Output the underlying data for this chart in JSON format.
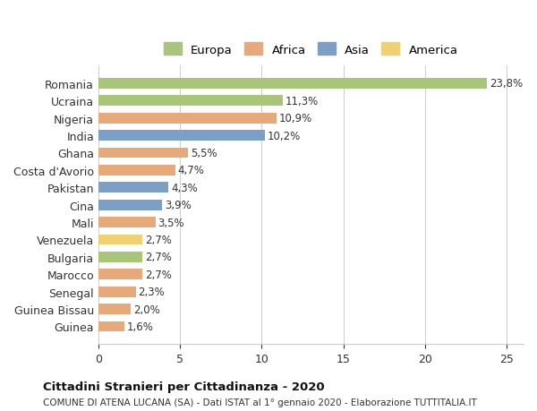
{
  "countries": [
    "Romania",
    "Ucraina",
    "Nigeria",
    "India",
    "Ghana",
    "Costa d'Avorio",
    "Pakistan",
    "Cina",
    "Mali",
    "Venezuela",
    "Bulgaria",
    "Marocco",
    "Senegal",
    "Guinea Bissau",
    "Guinea"
  ],
  "values": [
    23.8,
    11.3,
    10.9,
    10.2,
    5.5,
    4.7,
    4.3,
    3.9,
    3.5,
    2.7,
    2.7,
    2.7,
    2.3,
    2.0,
    1.6
  ],
  "labels": [
    "23,8%",
    "11,3%",
    "10,9%",
    "10,2%",
    "5,5%",
    "4,7%",
    "4,3%",
    "3,9%",
    "3,5%",
    "2,7%",
    "2,7%",
    "2,7%",
    "2,3%",
    "2,0%",
    "1,6%"
  ],
  "continents": [
    "Europa",
    "Europa",
    "Africa",
    "Asia",
    "Africa",
    "Africa",
    "Asia",
    "Asia",
    "Africa",
    "America",
    "Europa",
    "Africa",
    "Africa",
    "Africa",
    "Africa"
  ],
  "colors": {
    "Europa": "#a8c57a",
    "Africa": "#e8a97a",
    "Asia": "#7b9fc7",
    "America": "#f0d070"
  },
  "legend_order": [
    "Europa",
    "Africa",
    "Asia",
    "America"
  ],
  "xlim": [
    0,
    26
  ],
  "xticks": [
    0,
    5,
    10,
    15,
    20,
    25
  ],
  "title_main": "Cittadini Stranieri per Cittadinanza - 2020",
  "title_sub": "COMUNE DI ATENA LUCANA (SA) - Dati ISTAT al 1° gennaio 2020 - Elaborazione TUTTITALIA.IT",
  "background_color": "#ffffff",
  "bar_height": 0.6,
  "grid_color": "#cccccc"
}
